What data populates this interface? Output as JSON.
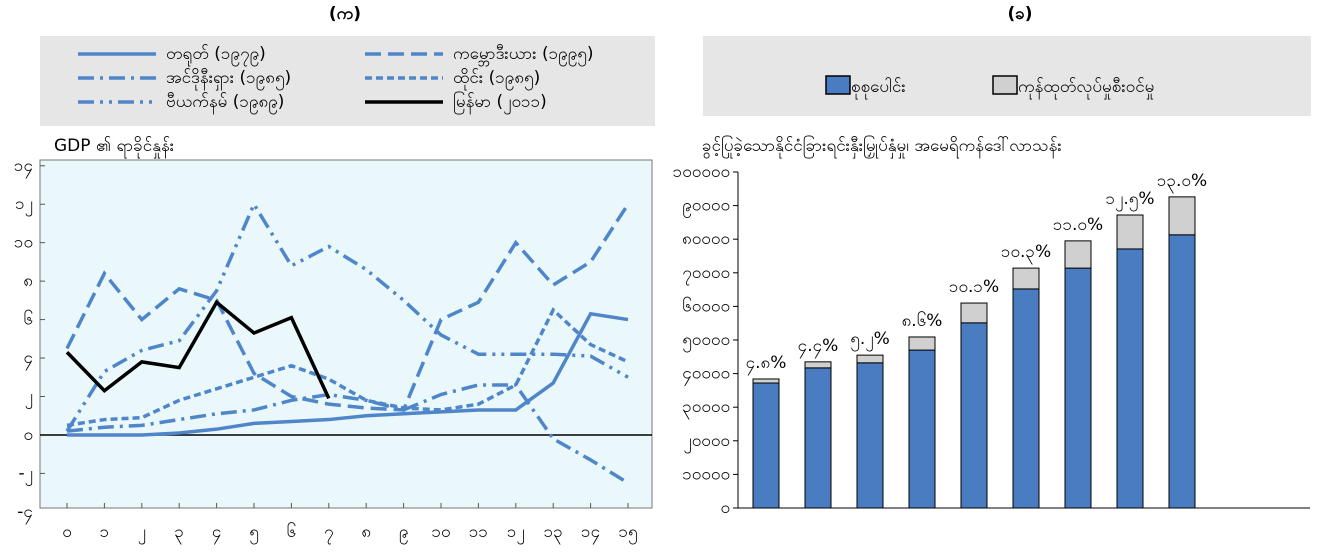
{
  "chart_data": [
    {
      "type": "line",
      "title": "(က)",
      "ylabel": "GDP ၏ ရာခိုင်နှုန်း",
      "categories": [
        "၀",
        "၁",
        "၂",
        "၃",
        "၄",
        "၅",
        "၆",
        "၇",
        "၈",
        "၉",
        "၁၀",
        "၁၁",
        "၁၂",
        "၁၃",
        "၁၄",
        "၁၅"
      ],
      "ylim": [
        -3.8,
        14.3
      ],
      "yticks": [
        {
          "value": -4,
          "label": "-၄"
        },
        {
          "value": -2,
          "label": "-၂"
        },
        {
          "value": 0,
          "label": "၀"
        },
        {
          "value": 2,
          "label": "၂"
        },
        {
          "value": 4,
          "label": "၄"
        },
        {
          "value": 6,
          "label": "၆"
        },
        {
          "value": 8,
          "label": "၈"
        },
        {
          "value": 10,
          "label": "၁၀"
        },
        {
          "value": 12,
          "label": "၁၂"
        },
        {
          "value": 14,
          "label": "၁၄"
        }
      ],
      "series": [
        {
          "name": "တရုတ် (၁၉၇၉)",
          "color": "#4f86c9",
          "style": "solid",
          "values": [
            0,
            0,
            0,
            0.1,
            0.3,
            0.6,
            0.7,
            0.8,
            1.0,
            1.1,
            1.2,
            1.3,
            1.3,
            2.7,
            6.3,
            6.0
          ]
        },
        {
          "name": "ကမ္ဘောဒီးယား (၁၉၉၅)",
          "color": "#4f86c9",
          "style": "dashed",
          "values": [
            4.5,
            8.4,
            6.0,
            7.6,
            7.0,
            3.2,
            2.0,
            1.6,
            1.4,
            1.3,
            6.0,
            6.9,
            10.0,
            7.8,
            9.0,
            12.0
          ]
        },
        {
          "name": "အင်ဒိုနီးရှား (၁၉၈၅)",
          "color": "#4f86c9",
          "style": "dash-dot",
          "values": [
            0.2,
            0.4,
            0.5,
            0.8,
            1.1,
            1.3,
            1.8,
            2.1,
            1.8,
            1.3,
            2.1,
            2.6,
            2.6,
            -0.2,
            -1.3,
            -2.5
          ]
        },
        {
          "name": "ထိုင်း (၁၉၈၅)",
          "color": "#4f86c9",
          "style": "short-dash",
          "values": [
            0.5,
            0.8,
            0.9,
            1.8,
            2.4,
            3.0,
            3.6,
            2.9,
            1.8,
            1.4,
            1.3,
            1.6,
            2.6,
            6.5,
            4.7,
            3.8
          ]
        },
        {
          "name": "ဗီယက်နမ် (၁၉၈၉)",
          "color": "#4f86c9",
          "style": "dash-dot-dot",
          "values": [
            0.2,
            3.3,
            4.4,
            4.9,
            7.5,
            12.0,
            8.8,
            9.8,
            8.6,
            7.0,
            5.2,
            4.2,
            4.2,
            4.2,
            4.1,
            3.0
          ]
        },
        {
          "name": "မြန်မာ (၂၀၁၁)",
          "color": "#000000",
          "style": "solid",
          "values": [
            4.3,
            2.3,
            3.8,
            3.5,
            6.9,
            5.3,
            6.1,
            1.9,
            null,
            null,
            null,
            null,
            null,
            null,
            null,
            null
          ]
        }
      ]
    },
    {
      "type": "stacked-bar",
      "title": "(ခ)",
      "ylabel": "ခွင့်ပြုခဲ့သောနိုင်ငံခြားရင်းနှီးမြှုပ်နှံမှု၊ အမေရိကန်ဒေါ်လာသန်း",
      "categories": [
        null,
        null,
        null,
        null,
        null,
        null,
        null,
        null,
        null
      ],
      "ylim": [
        0,
        100000
      ],
      "yticks": [
        {
          "value": 0,
          "label": "၀"
        },
        {
          "value": 10000,
          "label": "၁၀၀၀၀"
        },
        {
          "value": 20000,
          "label": "၂၀၀၀၀"
        },
        {
          "value": 30000,
          "label": "၃၀၀၀၀"
        },
        {
          "value": 40000,
          "label": "၄၀၀၀၀"
        },
        {
          "value": 50000,
          "label": "၅၀၀၀၀"
        },
        {
          "value": 60000,
          "label": "၆၀၀၀၀"
        },
        {
          "value": 70000,
          "label": "၇၀၀၀၀"
        },
        {
          "value": 80000,
          "label": "၈၀၀၀၀"
        },
        {
          "value": 90000,
          "label": "၉၀၀၀၀"
        },
        {
          "value": 100000,
          "label": "၁၀၀၀၀၀"
        }
      ],
      "series": [
        {
          "name": "စုစုပေါင်း",
          "color": "#4a7cc2",
          "values": [
            37200,
            41700,
            43200,
            47000,
            55100,
            65200,
            71400,
            77100,
            81300
          ]
        },
        {
          "name": "ကုန်ထုတ်လုပ်မှုစီးဝင်မှု",
          "color": "#d0d0d0",
          "values": [
            1200,
            1800,
            2300,
            3900,
            5900,
            6200,
            8100,
            10100,
            11300
          ]
        }
      ],
      "annotations": [
        "၄.၈%",
        "၄.၄%",
        "၅.၂%",
        "၈.၆%",
        "၁၀.၁%",
        "၁၀.၃%",
        "၁၁.၀%",
        "၁၂.၅%",
        "၁၃.၀%"
      ]
    }
  ]
}
